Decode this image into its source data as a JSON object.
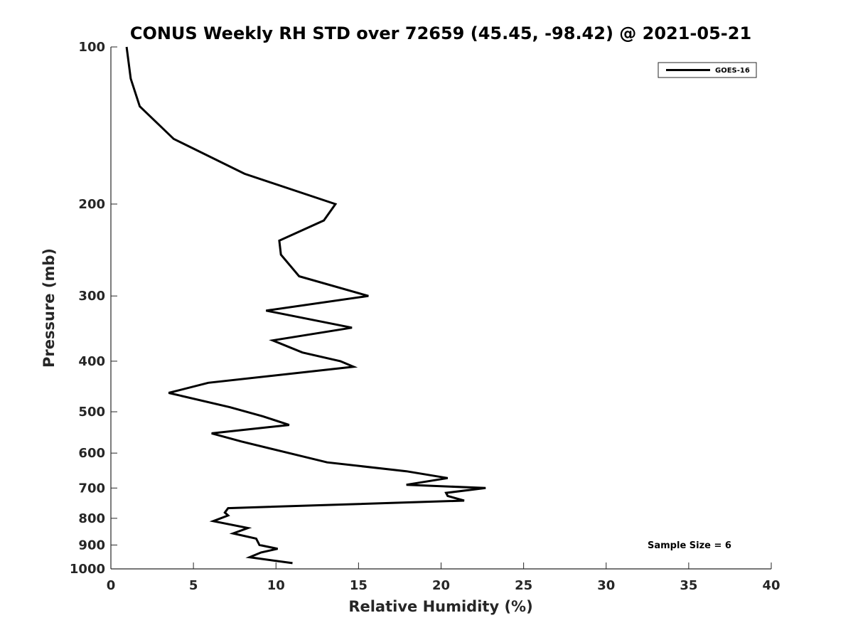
{
  "chart_data": {
    "type": "line",
    "title": "CONUS Weekly RH STD over 72659 (45.45, -98.42) @ 2021-05-21",
    "xlabel": "Relative Humidity (%)",
    "ylabel": "Pressure (mb)",
    "xlim": [
      0,
      40
    ],
    "ylim": [
      100,
      1000
    ],
    "y_scale": "log",
    "y_reversed": true,
    "xticks": [
      0,
      5,
      10,
      15,
      20,
      25,
      30,
      35,
      40
    ],
    "yticks": [
      100,
      200,
      300,
      400,
      500,
      600,
      700,
      800,
      900,
      1000
    ],
    "grid": false,
    "legend": {
      "position": "top-right",
      "entries": [
        "GOES-16"
      ]
    },
    "annotation": "Sample Size = 6",
    "series": [
      {
        "name": "GOES-16",
        "color": "#000000",
        "x": [
          0.95,
          1.2,
          1.75,
          3.8,
          8.1,
          13.6,
          12.9,
          10.2,
          10.3,
          11.4,
          15.6,
          9.4,
          14.6,
          9.8,
          11.6,
          13.9,
          14.7,
          5.9,
          3.5,
          7.2,
          9.2,
          10.8,
          6.1,
          7.9,
          10.8,
          13.1,
          17.9,
          20.4,
          17.9,
          22.7,
          20.3,
          20.4,
          21.4,
          7.1,
          6.9,
          7.1,
          6.2,
          8.3,
          7.4,
          8.8,
          9.0,
          10.1,
          9.1,
          8.4,
          11.0
        ],
        "y": [
          100,
          115,
          130,
          150,
          175,
          200,
          215,
          235,
          250,
          275,
          300,
          320,
          345,
          365,
          385,
          400,
          410,
          440,
          460,
          490,
          510,
          530,
          550,
          570,
          600,
          625,
          650,
          670,
          690,
          700,
          715,
          725,
          740,
          765,
          780,
          790,
          810,
          835,
          855,
          875,
          900,
          915,
          930,
          950,
          975
        ]
      }
    ]
  }
}
